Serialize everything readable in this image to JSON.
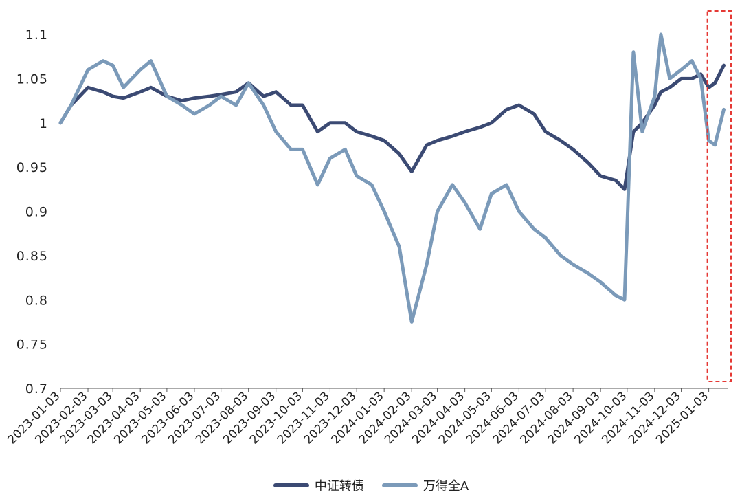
{
  "chart_data": {
    "type": "line",
    "title": "",
    "xlabel": "",
    "ylabel": "",
    "ylim": [
      0.7,
      1.1
    ],
    "yticks": [
      "0.7",
      "0.75",
      "0.8",
      "0.85",
      "0.9",
      "0.95",
      "1",
      "1.05",
      "1.1"
    ],
    "xticks": [
      "2023-01-03",
      "2023-02-03",
      "2023-03-03",
      "2023-04-03",
      "2023-05-03",
      "2023-06-03",
      "2023-07-03",
      "2023-08-03",
      "2023-09-03",
      "2023-10-03",
      "2023-11-03",
      "2023-12-03",
      "2024-01-03",
      "2024-02-03",
      "2024-03-03",
      "2024-04-03",
      "2024-05-03",
      "2024-06-03",
      "2024-07-03",
      "2024-08-03",
      "2024-09-03",
      "2024-10-03",
      "2024-11-03",
      "2024-12-03",
      "2025-01-03"
    ],
    "x": [
      "2023-01-03",
      "2023-01-15",
      "2023-02-03",
      "2023-02-20",
      "2023-03-03",
      "2023-03-15",
      "2023-04-03",
      "2023-04-15",
      "2023-05-03",
      "2023-05-20",
      "2023-06-03",
      "2023-06-20",
      "2023-07-03",
      "2023-07-20",
      "2023-08-03",
      "2023-08-20",
      "2023-09-03",
      "2023-09-20",
      "2023-10-03",
      "2023-10-20",
      "2023-11-03",
      "2023-11-20",
      "2023-12-03",
      "2023-12-20",
      "2024-01-03",
      "2024-01-20",
      "2024-02-03",
      "2024-02-20",
      "2024-03-03",
      "2024-03-20",
      "2024-04-03",
      "2024-04-20",
      "2024-05-03",
      "2024-05-20",
      "2024-06-03",
      "2024-06-20",
      "2024-07-03",
      "2024-07-20",
      "2024-08-03",
      "2024-08-20",
      "2024-09-03",
      "2024-09-20",
      "2024-09-30",
      "2024-10-10",
      "2024-10-20",
      "2024-11-03",
      "2024-11-10",
      "2024-11-20",
      "2024-12-03",
      "2024-12-15",
      "2024-12-25",
      "2025-01-03",
      "2025-01-10",
      "2025-01-20"
    ],
    "series": [
      {
        "name": "中证转债",
        "color": "#3b4a73",
        "values": [
          1.0,
          1.02,
          1.04,
          1.035,
          1.03,
          1.028,
          1.035,
          1.04,
          1.03,
          1.025,
          1.028,
          1.03,
          1.032,
          1.035,
          1.045,
          1.03,
          1.035,
          1.02,
          1.02,
          0.99,
          1.0,
          1.0,
          0.99,
          0.985,
          0.98,
          0.965,
          0.945,
          0.975,
          0.98,
          0.985,
          0.99,
          0.995,
          1.0,
          1.015,
          1.02,
          1.01,
          0.99,
          0.98,
          0.97,
          0.955,
          0.94,
          0.935,
          0.925,
          0.99,
          1.0,
          1.02,
          1.035,
          1.04,
          1.05,
          1.05,
          1.055,
          1.04,
          1.045,
          1.065
        ]
      },
      {
        "name": "万得全A",
        "color": "#7b9ab9",
        "values": [
          1.0,
          1.02,
          1.06,
          1.07,
          1.065,
          1.04,
          1.06,
          1.07,
          1.03,
          1.02,
          1.01,
          1.02,
          1.03,
          1.02,
          1.045,
          1.02,
          0.99,
          0.97,
          0.97,
          0.93,
          0.96,
          0.97,
          0.94,
          0.93,
          0.9,
          0.86,
          0.775,
          0.84,
          0.9,
          0.93,
          0.91,
          0.88,
          0.92,
          0.93,
          0.9,
          0.88,
          0.87,
          0.85,
          0.84,
          0.83,
          0.82,
          0.805,
          0.8,
          1.08,
          0.99,
          1.03,
          1.1,
          1.05,
          1.06,
          1.07,
          1.05,
          0.98,
          0.975,
          1.015
        ]
      }
    ],
    "highlight": {
      "from": "2025-01-03",
      "to": "2025-01-25",
      "style": "red-dashed-box"
    },
    "legend": "bottom-center",
    "grid": false
  }
}
